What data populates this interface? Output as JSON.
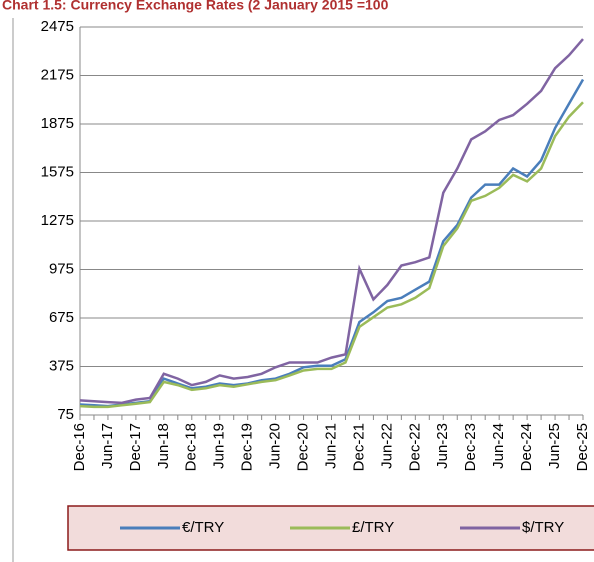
{
  "chart_data": {
    "type": "line",
    "title": "Chart 1.5: Currency Exchange Rates (2 January 2015 =100",
    "categories": [
      "Dec-16",
      null,
      "Jun-17",
      null,
      "Dec-17",
      null,
      "Jun-18",
      null,
      "Dec-18",
      null,
      "Jun-19",
      null,
      "Dec-19",
      null,
      "Jun-20",
      null,
      "Dec-20",
      null,
      "Jun-21",
      null,
      "Dec-21",
      null,
      "Jun-22",
      null,
      "Dec-22",
      null,
      "Jun-23",
      null,
      "Dec-23",
      null,
      "Jun-24",
      null,
      "Dec-24",
      null,
      "Jun-25",
      null,
      "Dec-25"
    ],
    "series": [
      {
        "name": "€/TRY",
        "color": "#4a7ebb",
        "values": [
          140,
          135,
          130,
          140,
          150,
          160,
          300,
          270,
          240,
          250,
          270,
          260,
          270,
          290,
          300,
          330,
          370,
          380,
          380,
          420,
          650,
          710,
          780,
          800,
          850,
          900,
          1150,
          1250,
          1420,
          1500,
          1500,
          1600,
          1550,
          1650,
          1850,
          2000,
          2150
        ]
      },
      {
        "name": "£/TRY",
        "color": "#9bbb59",
        "values": [
          130,
          125,
          125,
          135,
          145,
          155,
          280,
          260,
          230,
          240,
          260,
          250,
          265,
          280,
          290,
          320,
          350,
          360,
          360,
          400,
          620,
          680,
          740,
          760,
          800,
          860,
          1120,
          1230,
          1400,
          1430,
          1480,
          1560,
          1520,
          1600,
          1800,
          1920,
          2010
        ]
      },
      {
        "name": "$/TRY",
        "color": "#8064a2",
        "values": [
          165,
          160,
          155,
          150,
          170,
          180,
          330,
          300,
          260,
          280,
          320,
          300,
          310,
          330,
          370,
          400,
          400,
          400,
          430,
          450,
          980,
          790,
          880,
          1000,
          1020,
          1050,
          1450,
          1600,
          1780,
          1830,
          1900,
          1930,
          2000,
          2080,
          2220,
          2300,
          2400
        ]
      }
    ],
    "ylim": [
      75,
      2475
    ],
    "yticks": [
      75,
      375,
      675,
      975,
      1275,
      1575,
      1875,
      2175,
      2475
    ],
    "grid": true
  }
}
